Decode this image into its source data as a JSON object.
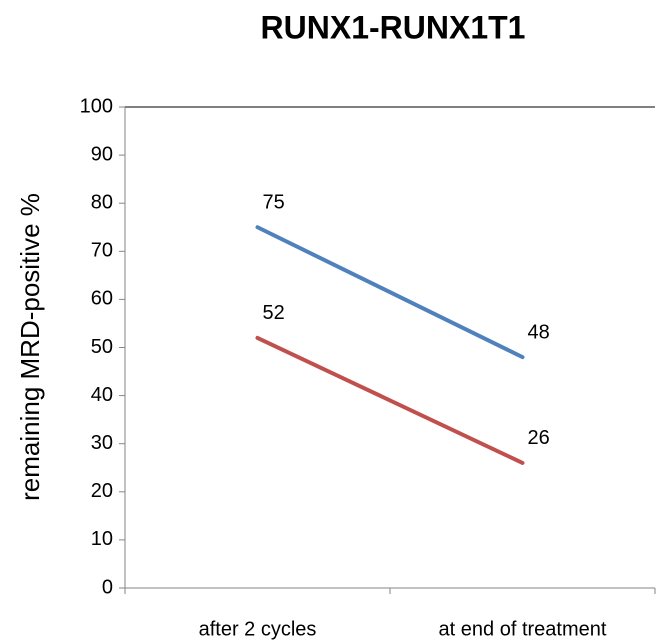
{
  "chart_data": {
    "type": "line",
    "title": "RUNX1-RUNX1T1",
    "y_label": "remaining MRD-positive  %",
    "categories": [
      "after 2 cycles",
      "at end of treatment"
    ],
    "series": [
      {
        "color": "#4f81bd",
        "values": [
          75,
          48
        ]
      },
      {
        "color": "#c0504d",
        "values": [
          52,
          26
        ]
      }
    ],
    "ylim": [
      0,
      100
    ],
    "yticks": [
      0,
      10,
      20,
      30,
      40,
      50,
      60,
      70,
      80,
      90,
      100
    ],
    "grid": false,
    "data_labels": true
  }
}
